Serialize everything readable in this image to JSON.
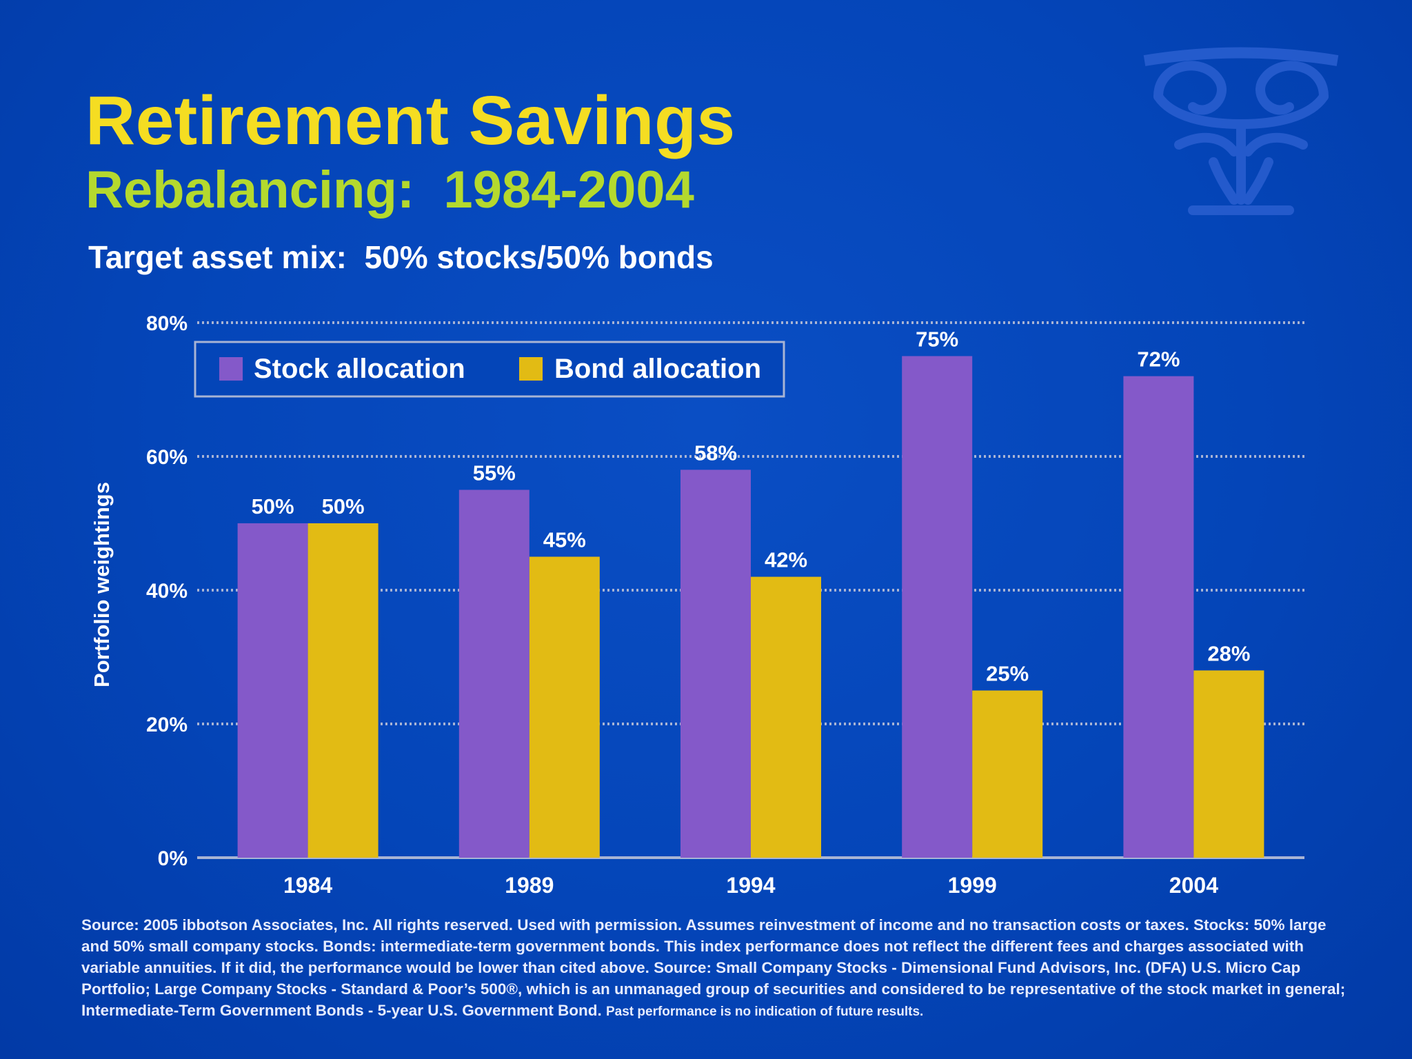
{
  "slide": {
    "title": "Retirement Savings",
    "subtitle": "Rebalancing:  1984-2004",
    "target_mix": "Target asset mix:  50% stocks/50% bonds",
    "footnote_main": "Source:  2005 ibbotson Associates, Inc.  All rights reserved.  Used with permission.  Assumes reinvestment of income and no transaction costs or taxes. Stocks: 50% large and 50% small company stocks. Bonds: intermediate-term government bonds. This index performance does not reflect the different fees and charges associated with variable annuities. If it did, the performance would be lower than cited above.  Source: Small Company Stocks - Dimensional Fund Advisors, Inc. (DFA) U.S. Micro Cap Portfolio; Large Company Stocks - Standard & Poor’s 500®, which is an unmanaged group of securities and considered to be representative of the stock market in general; Intermediate-Term Government Bonds - 5-year U.S. Government Bond.",
    "footnote_small": "Past performance is no indication of future results.",
    "colors": {
      "background": "#0445b8",
      "title": "#f5dd22",
      "subtitle": "#b4d92e",
      "stock": "#8459c9",
      "bond": "#e2bb14"
    }
  },
  "chart_data": {
    "type": "bar",
    "categories": [
      "1984",
      "1989",
      "1994",
      "1999",
      "2004"
    ],
    "series": [
      {
        "name": "Stock allocation",
        "values": [
          50,
          55,
          58,
          75,
          72
        ],
        "labels": [
          "50%",
          "55%",
          "58%",
          "75%",
          "72%"
        ],
        "color": "#8459c9"
      },
      {
        "name": "Bond allocation",
        "values": [
          50,
          45,
          42,
          25,
          28
        ],
        "labels": [
          "50%",
          "45%",
          "42%",
          "25%",
          "28%"
        ],
        "color": "#e2bb14"
      }
    ],
    "ylabel": "Portfolio weightings",
    "xlabel": "",
    "ylim": [
      0,
      80
    ],
    "yticks": [
      0,
      20,
      40,
      60,
      80
    ],
    "ytick_labels": [
      "0%",
      "20%",
      "40%",
      "60%",
      "80%"
    ],
    "grid": true,
    "legend": "top-left"
  }
}
